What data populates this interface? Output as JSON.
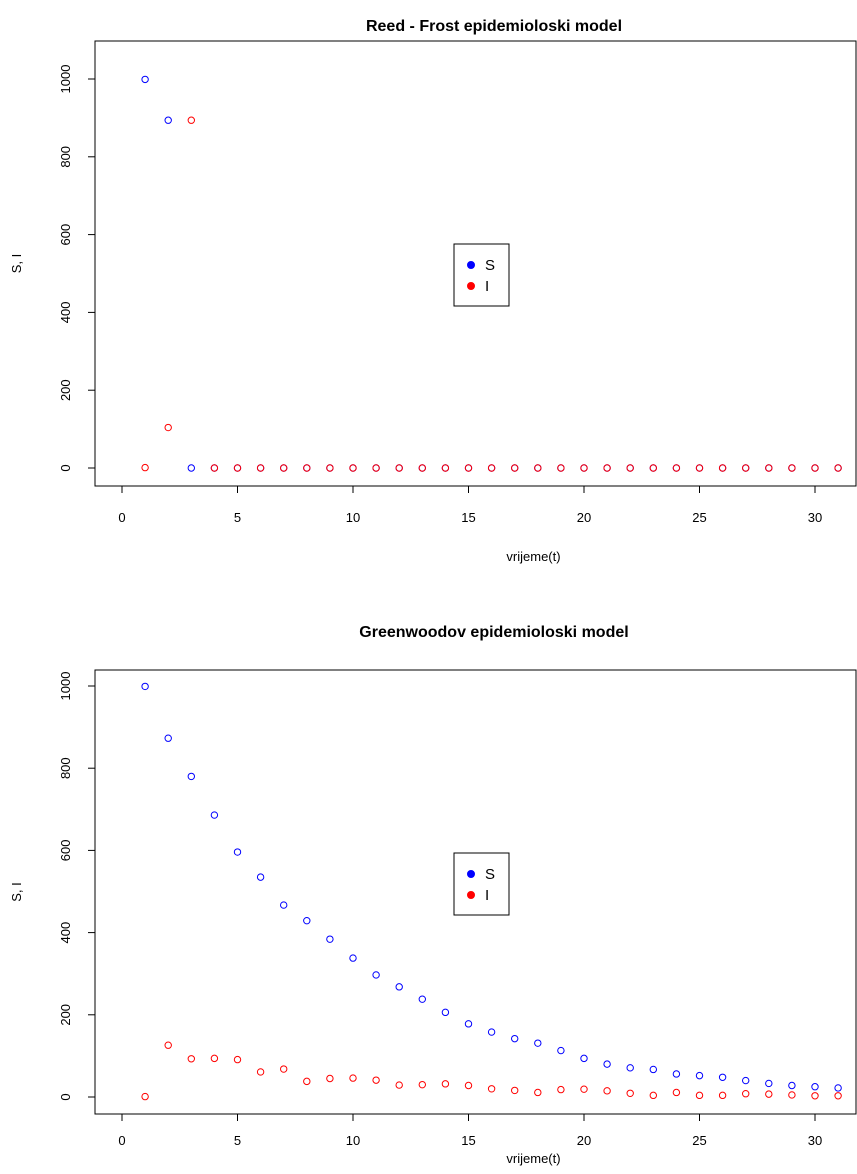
{
  "chart_data": [
    {
      "type": "scatter",
      "title": "Reed - Frost epidemioloski model",
      "xlabel": "vrijeme(t)",
      "ylabel": "S, I",
      "xlim": [
        0,
        31
      ],
      "ylim": [
        0,
        1000
      ],
      "x_ticks": [
        0,
        5,
        10,
        15,
        20,
        25,
        30
      ],
      "y_ticks": [
        0,
        200,
        400,
        600,
        800,
        1000
      ],
      "grid": false,
      "legend": {
        "position": "center",
        "entries": [
          "S",
          "I"
        ]
      },
      "colors": {
        "S": "#0000ff",
        "I": "#ff0000"
      },
      "x": [
        1,
        2,
        3,
        4,
        5,
        6,
        7,
        8,
        9,
        10,
        11,
        12,
        13,
        14,
        15,
        16,
        17,
        18,
        19,
        20,
        21,
        22,
        23,
        24,
        25,
        26,
        27,
        28,
        29,
        30,
        31
      ],
      "series": [
        {
          "name": "S",
          "values": [
            999,
            894,
            0,
            0,
            0,
            0,
            0,
            0,
            0,
            0,
            0,
            0,
            0,
            0,
            0,
            0,
            0,
            0,
            0,
            0,
            0,
            0,
            0,
            0,
            0,
            0,
            0,
            0,
            0,
            0,
            0
          ]
        },
        {
          "name": "I",
          "values": [
            1,
            104,
            894,
            0,
            0,
            0,
            0,
            0,
            0,
            0,
            0,
            0,
            0,
            0,
            0,
            0,
            0,
            0,
            0,
            0,
            0,
            0,
            0,
            0,
            0,
            0,
            0,
            0,
            0,
            0,
            0
          ]
        }
      ]
    },
    {
      "type": "scatter",
      "title": "Greenwoodov epidemioloski model",
      "xlabel": "vrijeme(t)",
      "ylabel": "S, I",
      "xlim": [
        0,
        31
      ],
      "ylim": [
        0,
        1000
      ],
      "x_ticks": [
        0,
        5,
        10,
        15,
        20,
        25,
        30
      ],
      "y_ticks": [
        0,
        200,
        400,
        600,
        800,
        1000
      ],
      "grid": false,
      "legend": {
        "position": "center",
        "entries": [
          "S",
          "I"
        ]
      },
      "colors": {
        "S": "#0000ff",
        "I": "#ff0000"
      },
      "x": [
        1,
        2,
        3,
        4,
        5,
        6,
        7,
        8,
        9,
        10,
        11,
        12,
        13,
        14,
        15,
        16,
        17,
        18,
        19,
        20,
        21,
        22,
        23,
        24,
        25,
        26,
        27,
        28,
        29,
        30,
        31
      ],
      "series": [
        {
          "name": "S",
          "values": [
            999,
            873,
            780,
            686,
            596,
            535,
            467,
            429,
            384,
            338,
            297,
            268,
            238,
            206,
            178,
            158,
            142,
            131,
            113,
            94,
            80,
            71,
            67,
            56,
            52,
            48,
            40,
            33,
            28,
            25,
            22
          ]
        },
        {
          "name": "I",
          "values": [
            1,
            126,
            93,
            94,
            91,
            61,
            68,
            38,
            45,
            46,
            41,
            29,
            30,
            32,
            28,
            20,
            16,
            11,
            18,
            19,
            15,
            9,
            4,
            11,
            4,
            4,
            8,
            7,
            5,
            3,
            3
          ]
        }
      ]
    }
  ]
}
